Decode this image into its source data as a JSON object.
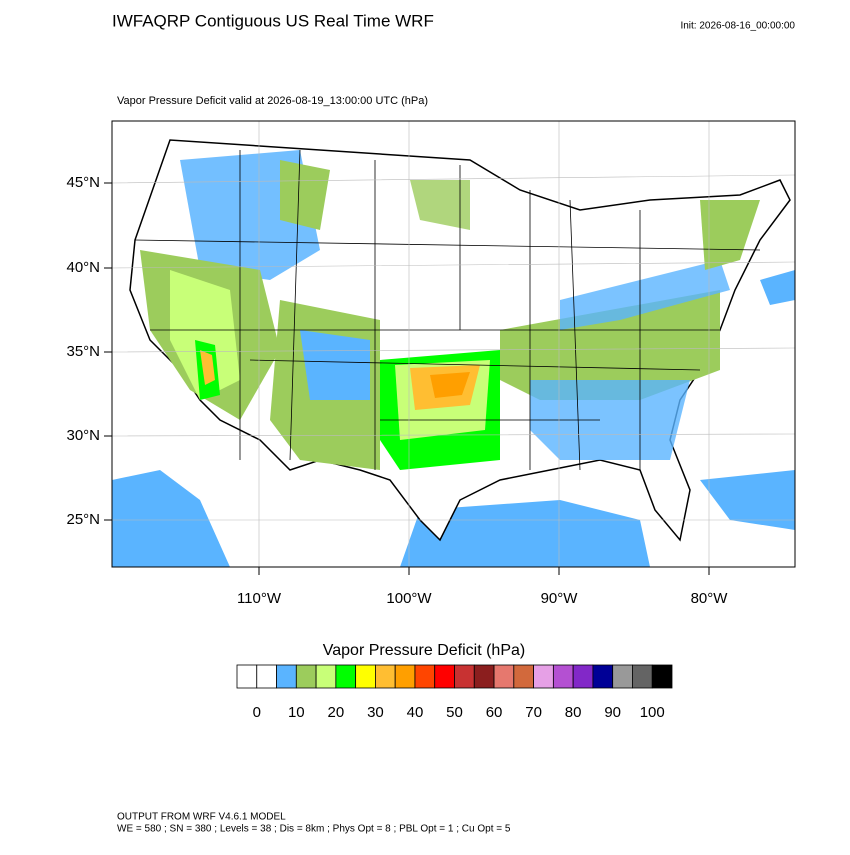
{
  "header": {
    "title": "IWFAQRP Contiguous US Real Time WRF",
    "init": "Init: 2026-08-16_00:00:00"
  },
  "map": {
    "subtitle": "Vapor Pressure Deficit valid at 2026-08-19_13:00:00 UTC   (hPa)",
    "lat_labels": [
      "45°N",
      "40°N",
      "35°N",
      "30°N",
      "25°N"
    ],
    "lon_labels": [
      "110°W",
      "100°W",
      "90°W",
      "80°W"
    ]
  },
  "colorbar": {
    "title": "Vapor Pressure Deficit  (hPa)",
    "colors": [
      "#ffffff",
      "#ffffff",
      "#5ab4ff",
      "#9ccc5c",
      "#c8ff78",
      "#00ff00",
      "#ffff00",
      "#ffbe32",
      "#ff9f00",
      "#ff4500",
      "#ff0000",
      "#c83232",
      "#8b1e1e",
      "#e6786e",
      "#d2693c",
      "#e6a0e6",
      "#b450d2",
      "#8228c8",
      "#000096",
      "#999999",
      "#646464",
      "#000000"
    ],
    "labels": [
      "0",
      "10",
      "20",
      "30",
      "40",
      "50",
      "60",
      "70",
      "80",
      "90",
      "100"
    ]
  },
  "footer": {
    "line1": "OUTPUT FROM WRF V4.6.1 MODEL",
    "line2": "WE = 580 ; SN = 380 ; Levels = 38 ; Dis = 8km ; Phys Opt = 8 ; PBL Opt = 1 ; Cu Opt = 5"
  }
}
